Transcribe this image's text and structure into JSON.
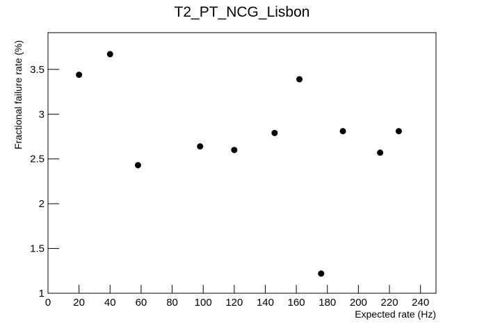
{
  "chart_data": {
    "type": "scatter",
    "title": "T2_PT_NCG_Lisbon",
    "x_label": "Expected rate (Hz)",
    "y_label": "Fractional failure rate (%)",
    "color": "#000000",
    "x": [
      20,
      40,
      58,
      98,
      120,
      146,
      162,
      176,
      190,
      214,
      226
    ],
    "values": [
      3.44,
      3.67,
      2.43,
      2.64,
      2.6,
      2.79,
      3.39,
      1.22,
      2.81,
      2.57,
      2.81
    ],
    "xlim": [
      0,
      250
    ],
    "ylim": [
      1,
      3.91
    ],
    "xticks": [
      0,
      20,
      40,
      60,
      80,
      100,
      120,
      140,
      160,
      180,
      200,
      220,
      240
    ],
    "yticks": [
      1,
      1.5,
      2,
      2.5,
      3,
      3.5
    ]
  }
}
